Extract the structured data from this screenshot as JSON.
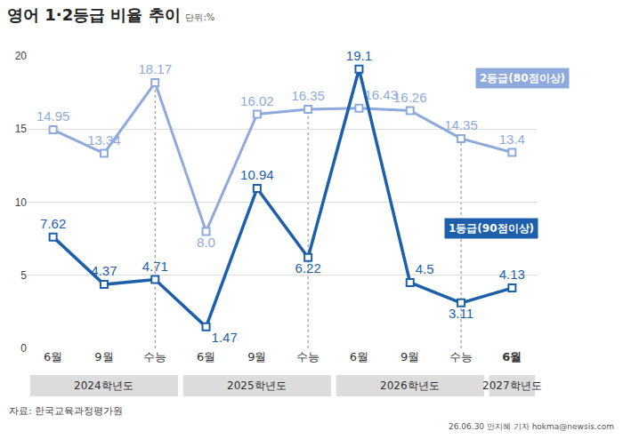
{
  "chart_data": {
    "type": "line",
    "title": "영어 1·2등급 비율 추이",
    "subtitle": "단위:%",
    "categories": [
      "6월",
      "9월",
      "수능",
      "6월",
      "9월",
      "수능",
      "6월",
      "9월",
      "수능",
      "6월"
    ],
    "groups": [
      {
        "label": "2024학년도",
        "start": 0,
        "end": 2
      },
      {
        "label": "2025학년도",
        "start": 3,
        "end": 5
      },
      {
        "label": "2026학년도",
        "start": 6,
        "end": 8
      },
      {
        "label": "2027학년도",
        "start": 9,
        "end": 9
      }
    ],
    "series": [
      {
        "name": "2등급(80점이상)",
        "color": "#8eaadc",
        "values": [
          14.95,
          13.34,
          18.17,
          8.0,
          16.02,
          16.35,
          16.43,
          16.26,
          14.35,
          13.4
        ],
        "value_labels": [
          "14.95",
          "13.34",
          "18.17",
          "8.0",
          "16.02",
          "16.35",
          "16.43",
          "16.26",
          "14.35",
          "13.4"
        ]
      },
      {
        "name": "1등급(90점이상)",
        "color": "#1d5fab",
        "values": [
          7.62,
          4.37,
          4.71,
          1.47,
          10.94,
          6.22,
          19.1,
          4.5,
          3.11,
          4.13
        ]
      }
    ],
    "ylim": [
      0,
      20
    ],
    "yticks": [
      0,
      5,
      10,
      15,
      20
    ],
    "grid": true,
    "data_labels": true,
    "marker": "square",
    "source": "자료: 한국교육과정평가원",
    "credit": "26.06.30 안지혜 기자 hokma@newsis.com"
  }
}
